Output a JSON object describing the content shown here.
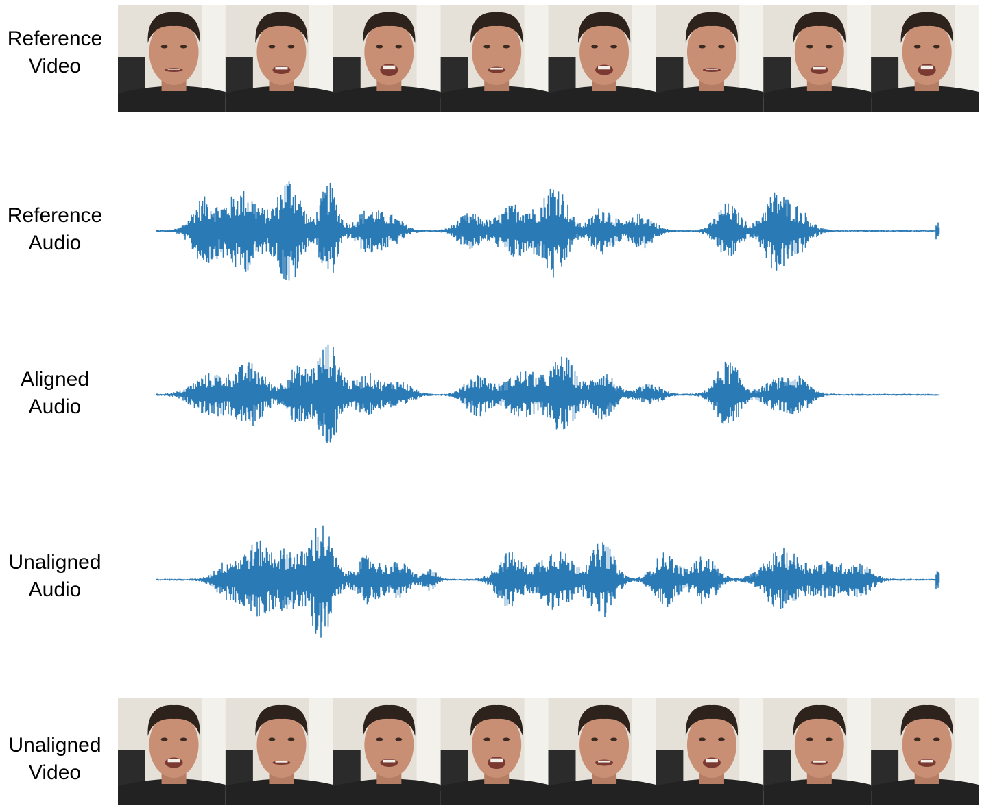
{
  "rows": [
    {
      "label": [
        "Reference",
        "Video"
      ]
    },
    {
      "label": [
        "Reference",
        "Audio"
      ]
    },
    {
      "label": [
        "Aligned",
        "Audio"
      ]
    },
    {
      "label": [
        "Unaligned",
        "Audio"
      ]
    },
    {
      "label": [
        "Unaligned",
        "Video"
      ]
    }
  ]
}
